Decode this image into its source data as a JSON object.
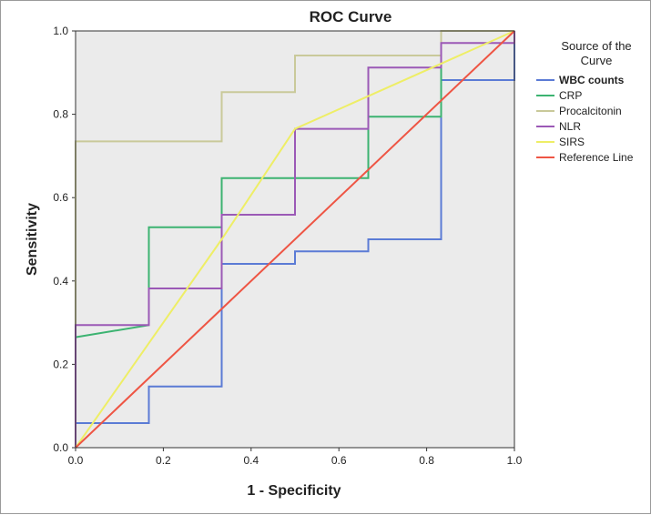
{
  "chart_data": {
    "type": "line",
    "title": "ROC Curve",
    "xlabel": "1 - Specificity",
    "ylabel": "Sensitivity",
    "xlim": [
      0,
      1
    ],
    "ylim": [
      0,
      1
    ],
    "x_ticks": [
      "0.0",
      "0.2",
      "0.4",
      "0.6",
      "0.8",
      "1.0"
    ],
    "y_ticks": [
      "0.0",
      "0.2",
      "0.4",
      "0.6",
      "0.8",
      "1.0"
    ],
    "grid": false,
    "legend": {
      "title_line1": "Source of the",
      "title_line2": "Curve",
      "position": "right"
    },
    "series": [
      {
        "name": "WBC counts",
        "color": "#5b7bd5",
        "bold": true,
        "x": [
          0,
          0,
          0.167,
          0.167,
          0.333,
          0.333,
          0.5,
          0.5,
          0.667,
          0.667,
          0.833,
          0.833,
          1,
          1
        ],
        "y": [
          0,
          0.059,
          0.059,
          0.147,
          0.147,
          0.441,
          0.441,
          0.471,
          0.471,
          0.5,
          0.5,
          0.882,
          0.882,
          1
        ]
      },
      {
        "name": "CRP",
        "color": "#3cb371",
        "x": [
          0,
          0,
          0.167,
          0.167,
          0.333,
          0.333,
          0.667,
          0.667,
          0.833,
          0.833,
          1
        ],
        "y": [
          0,
          0.265,
          0.294,
          0.529,
          0.529,
          0.647,
          0.647,
          0.794,
          0.794,
          1,
          1
        ]
      },
      {
        "name": "Procalcitonin",
        "color": "#c9c99a",
        "x": [
          0,
          0,
          0.333,
          0.333,
          0.5,
          0.5,
          0.833,
          0.833,
          1
        ],
        "y": [
          0,
          0.735,
          0.735,
          0.853,
          0.853,
          0.941,
          0.941,
          1,
          1
        ]
      },
      {
        "name": "NLR",
        "color": "#9b59b6",
        "x": [
          0,
          0,
          0.167,
          0.167,
          0.333,
          0.333,
          0.5,
          0.5,
          0.667,
          0.667,
          0.833,
          0.833,
          1,
          1
        ],
        "y": [
          0,
          0.294,
          0.294,
          0.382,
          0.382,
          0.559,
          0.559,
          0.765,
          0.765,
          0.912,
          0.912,
          0.971,
          0.971,
          1
        ]
      },
      {
        "name": "SIRS",
        "color": "#eeee66",
        "x": [
          0,
          0.333,
          0.5,
          1
        ],
        "y": [
          0,
          0.5,
          0.765,
          1
        ]
      },
      {
        "name": "Reference Line",
        "color": "#ee5544",
        "x": [
          0,
          1
        ],
        "y": [
          0,
          1
        ]
      }
    ]
  }
}
